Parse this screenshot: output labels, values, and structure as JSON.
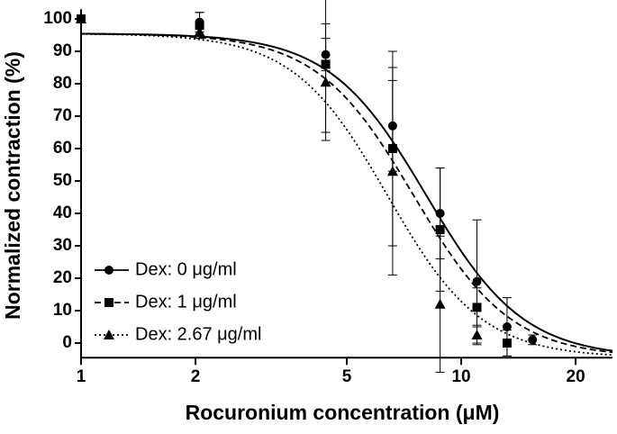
{
  "chart_data": {
    "type": "scatter",
    "x_label": "Rocuronium concentration (μM)",
    "y_label": "Normalized contraction (%)",
    "xscale": "log",
    "xlim": [
      1,
      25
    ],
    "xticks": [
      1,
      2,
      5,
      10,
      20
    ],
    "ylim": [
      -4.5,
      103
    ],
    "yticks": [
      0,
      10,
      20,
      30,
      40,
      50,
      60,
      70,
      80,
      90,
      100
    ],
    "legend": "lower left",
    "series": [
      {
        "name": "Dex: 0 μg/ml",
        "color": "#000000",
        "marker": "circle",
        "line_style": "solid",
        "x": [
          1,
          2.05,
          4.4,
          6.6,
          8.8,
          11,
          13.2,
          15.4
        ],
        "values": [
          100,
          99,
          89,
          67,
          40,
          19,
          5,
          1
        ],
        "errors": [
          0,
          3,
          5,
          14,
          14,
          19,
          9,
          1.5
        ],
        "fit": {
          "ec50": 8.1,
          "hill": 3.4
        }
      },
      {
        "name": "Dex: 1 μg/ml",
        "color": "#000000",
        "marker": "square",
        "line_style": "dashed",
        "x": [
          1,
          2.05,
          4.4,
          6.6,
          8.8,
          11,
          13.2
        ],
        "values": [
          100,
          98,
          86,
          60,
          35,
          11,
          0
        ],
        "errors": [
          0,
          4,
          21,
          30,
          19,
          6,
          4
        ],
        "fit": {
          "ec50": 7.5,
          "hill": 3.4
        }
      },
      {
        "name": "Dex: 2.67 μg/ml",
        "color": "#000000",
        "marker": "triangle",
        "line_style": "dotted",
        "x": [
          1,
          2.05,
          4.4,
          6.6,
          8.8,
          11
        ],
        "values": [
          100,
          96,
          80.5,
          53,
          12,
          2.5
        ],
        "errors": [
          0,
          2,
          18,
          32,
          21,
          3
        ],
        "fit": {
          "ec50": 6.4,
          "hill": 3.5
        }
      }
    ]
  }
}
